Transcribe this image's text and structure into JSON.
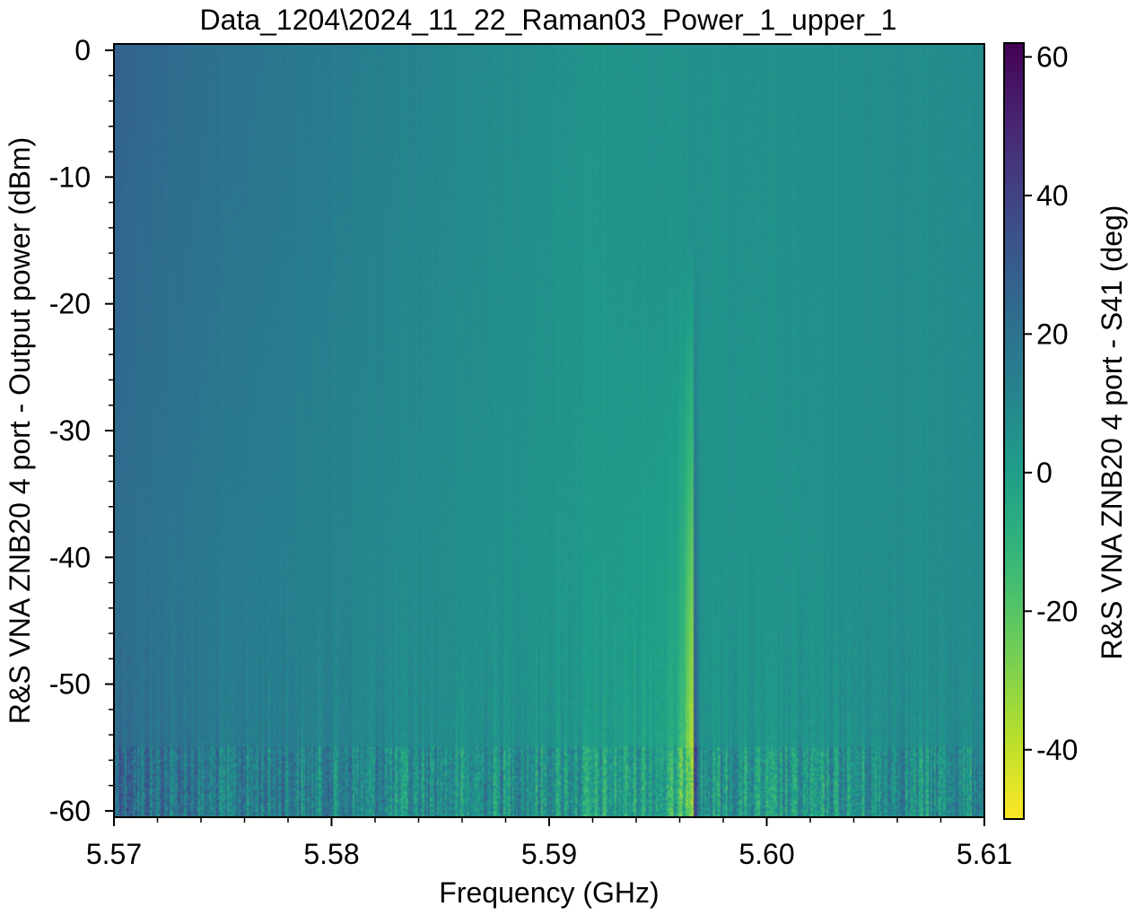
{
  "chart_data": {
    "type": "heatmap",
    "title": "Data_1204\\2024_11_22_Raman03_Power_1_upper_1",
    "xlabel": "Frequency (GHz)",
    "ylabel": "R&S VNA ZNB20 4 port - Output power (dBm)",
    "xlim": [
      5.57,
      5.61
    ],
    "ylim": [
      -60.5,
      0.5
    ],
    "x_ticks": [
      5.57,
      5.58,
      5.59,
      5.6,
      5.61
    ],
    "x_tick_labels": [
      "5.57",
      "5.58",
      "5.59",
      "5.60",
      "5.61"
    ],
    "y_ticks": [
      0,
      -10,
      -20,
      -30,
      -40,
      -50,
      -60
    ],
    "y_tick_labels": [
      "0",
      "-10",
      "-20",
      "-30",
      "-40",
      "-50",
      "-60"
    ],
    "colorbar": {
      "label": "R&S VNA ZNB20 4 port - S41 (deg)",
      "range": [
        -50,
        62
      ],
      "ticks": [
        60,
        40,
        20,
        0,
        -20,
        -40
      ],
      "tick_labels": [
        "60",
        "40",
        "20",
        "0",
        "-20",
        "-40"
      ],
      "colormap": "viridis_r"
    },
    "features": {
      "background_phase_low_freq_deg": 22,
      "background_phase_mid_deg": 2,
      "background_phase_high_freq_deg": 8,
      "resonance_frequency_GHz": 5.5966,
      "resonance_dip_deg": -35,
      "resonance_peak_deg": 30,
      "noise_increase_below_dBm": -50
    }
  }
}
